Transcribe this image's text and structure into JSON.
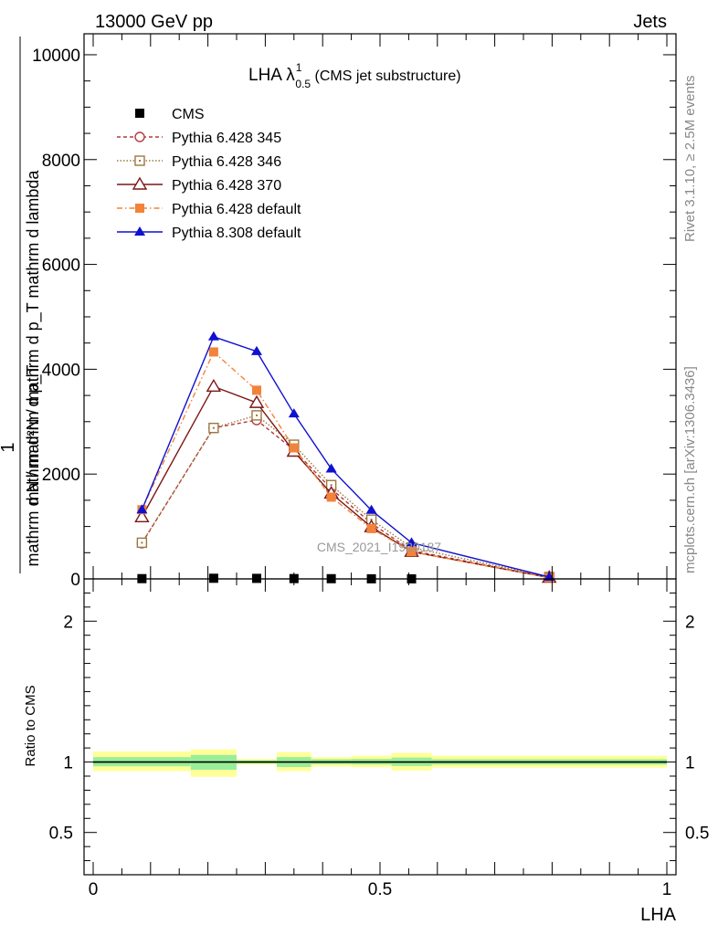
{
  "header": {
    "left": "13000 GeV pp",
    "right": "Jets"
  },
  "right_labels": {
    "rivet": "Rivet 3.1.10, ≥ 2.5M events",
    "mcplots": "mcplots.cern.ch [arXiv:1306.3436]"
  },
  "watermark": "CMS_2021_I1920187",
  "chart_data": [
    {
      "type": "line",
      "panel": "main",
      "title": {
        "main": "LHA λ",
        "sup": "1",
        "sub": "0.5",
        "suffix": " (CMS jet substructure)"
      },
      "ylabel_top": "mathrm d²N / mathrm d p_T mathrm d lambda",
      "ylabel_frac_num": "1",
      "ylabel_frac_den": "mathrm d N / mathrm d p_T",
      "xlim": [
        0,
        1
      ],
      "ylim": [
        0,
        10400
      ],
      "y_ticks": [
        0,
        2000,
        4000,
        6000,
        8000,
        10000
      ],
      "y_tick_labels": [
        "0",
        "2000",
        "4000",
        "6000",
        "8000",
        "10000"
      ],
      "legend_position": "top-left",
      "series": [
        {
          "name": "CMS",
          "color": "#000000",
          "marker": "square-filled",
          "dash": "none",
          "x": [
            0.085,
            0.21,
            0.285,
            0.35,
            0.415,
            0.485,
            0.555
          ],
          "y": [
            5,
            12,
            10,
            6,
            4,
            2,
            1
          ]
        },
        {
          "name": "Pythia 6.428 345",
          "color": "#b83a3a",
          "marker": "circle-open",
          "dash": "4,3",
          "x": [
            0.085,
            0.21,
            0.285,
            0.35,
            0.415,
            0.485,
            0.555,
            0.795
          ],
          "y": [
            680,
            2880,
            3030,
            2460,
            1720,
            1060,
            540,
            30
          ]
        },
        {
          "name": "Pythia 6.428 346",
          "color": "#9c7840",
          "marker": "square-open",
          "dash": "1.5,2",
          "x": [
            0.085,
            0.21,
            0.285,
            0.35,
            0.415,
            0.485,
            0.555,
            0.795
          ],
          "y": [
            690,
            2880,
            3120,
            2560,
            1790,
            1130,
            600,
            35
          ]
        },
        {
          "name": "Pythia 6.428 370",
          "color": "#7c1616",
          "marker": "triangle-open",
          "dash": "none",
          "x": [
            0.085,
            0.21,
            0.285,
            0.35,
            0.415,
            0.485,
            0.555,
            0.795
          ],
          "y": [
            1180,
            3670,
            3360,
            2430,
            1630,
            990,
            520,
            25
          ]
        },
        {
          "name": "Pythia 6.428 default",
          "color": "#f2833a",
          "marker": "square-filled",
          "dash": "6,3,1.5,3",
          "x": [
            0.085,
            0.21,
            0.285,
            0.35,
            0.415,
            0.485,
            0.555,
            0.795
          ],
          "y": [
            1320,
            4330,
            3600,
            2500,
            1560,
            960,
            520,
            25
          ]
        },
        {
          "name": "Pythia 8.308 default",
          "color": "#1010d0",
          "marker": "triangle-filled",
          "dash": "none",
          "x": [
            0.085,
            0.21,
            0.285,
            0.35,
            0.415,
            0.485,
            0.555,
            0.795
          ],
          "y": [
            1320,
            4620,
            4340,
            3150,
            2100,
            1310,
            690,
            35
          ]
        }
      ]
    },
    {
      "type": "area",
      "panel": "ratio",
      "ylabel": "Ratio to CMS",
      "xlabel": "LHA",
      "xlim": [
        0,
        1
      ],
      "ylim": [
        0.2,
        2.3
      ],
      "y_ticks": [
        0.5,
        1,
        2
      ],
      "y_tick_labels": [
        "0.5",
        "1",
        "2"
      ],
      "x_ticks": [
        0,
        0.5,
        1
      ],
      "x_tick_labels": [
        "0",
        "0.5",
        "1"
      ],
      "band_colors": {
        "inner": "#99ee99",
        "outer": "#ffff99"
      },
      "bands": [
        {
          "x": [
            0.0,
            0.17
          ],
          "inner": [
            0.97,
            1.035
          ],
          "outer": [
            0.935,
            1.075
          ]
        },
        {
          "x": [
            0.17,
            0.25
          ],
          "inner": [
            0.945,
            1.05
          ],
          "outer": [
            0.895,
            1.09
          ]
        },
        {
          "x": [
            0.25,
            0.32
          ],
          "inner": [
            0.99,
            1.012
          ],
          "outer": [
            0.982,
            1.022
          ]
        },
        {
          "x": [
            0.32,
            0.38
          ],
          "inner": [
            0.965,
            1.035
          ],
          "outer": [
            0.935,
            1.07
          ]
        },
        {
          "x": [
            0.38,
            0.45
          ],
          "inner": [
            0.985,
            1.02
          ],
          "outer": [
            0.968,
            1.035
          ]
        },
        {
          "x": [
            0.45,
            0.52
          ],
          "inner": [
            0.982,
            1.022
          ],
          "outer": [
            0.963,
            1.045
          ]
        },
        {
          "x": [
            0.52,
            0.59
          ],
          "inner": [
            0.972,
            1.032
          ],
          "outer": [
            0.94,
            1.065
          ]
        },
        {
          "x": [
            0.59,
            1.0
          ],
          "inner": [
            0.982,
            1.02
          ],
          "outer": [
            0.96,
            1.045
          ]
        }
      ],
      "reference_line": 1
    }
  ]
}
